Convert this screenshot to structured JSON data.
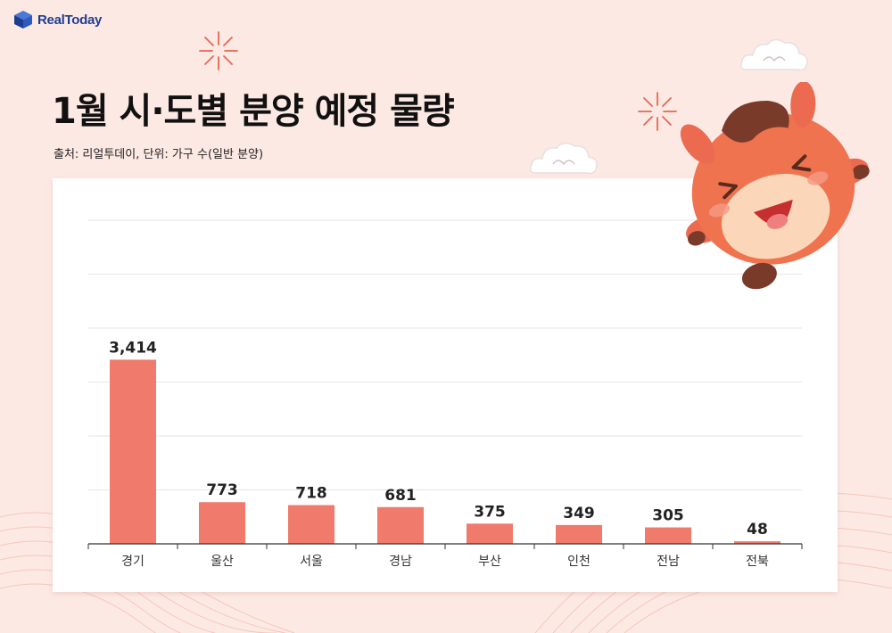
{
  "brand": {
    "logo_text": "RealToday"
  },
  "header": {
    "title": "1월 시·도별 분양 예정 물량",
    "source": "출처: 리얼투데이, 단위: 가구 수(일반 분양)"
  },
  "colors": {
    "bar": "#f07a6c",
    "background": "#fde9e4",
    "panel": "#ffffff",
    "title": "#111111"
  },
  "chart_data": {
    "type": "bar",
    "title": "1월 시·도별 분양 예정 물량",
    "categories": [
      "경기",
      "울산",
      "서울",
      "경남",
      "부산",
      "인천",
      "전남",
      "전북"
    ],
    "values": [
      3414,
      773,
      718,
      681,
      375,
      349,
      305,
      48
    ],
    "value_labels": [
      "3,414",
      "773",
      "718",
      "681",
      "375",
      "349",
      "305",
      "48"
    ],
    "ylim": [
      0,
      6000
    ],
    "grid": true,
    "legend": "none"
  }
}
